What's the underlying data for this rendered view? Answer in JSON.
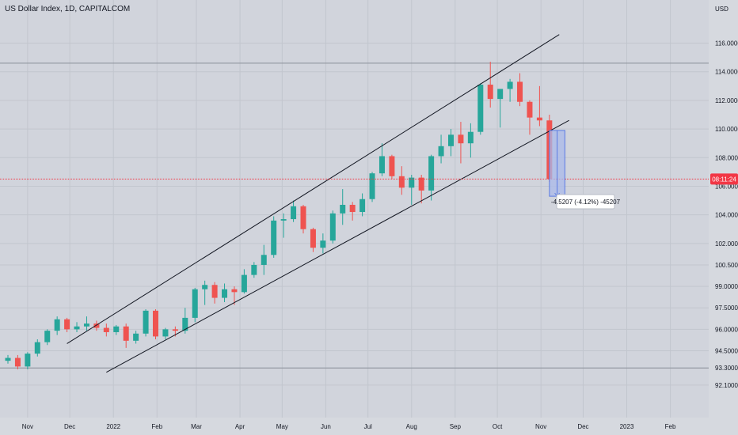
{
  "header": {
    "symbol_title": "US Dollar Index, 1D, CAPITALCOM",
    "currency": "USD"
  },
  "chart_data": {
    "type": "candlestick",
    "y_axis": {
      "ticks": [
        "116.0000",
        "114.0000",
        "112.0000",
        "110.0000",
        "108.0000",
        "106.0000",
        "104.0000",
        "102.0000",
        "100.5000",
        "99.0000",
        "97.5000",
        "96.0000",
        "94.5000",
        "93.3000",
        "92.1000"
      ],
      "visible_range": [
        91.1,
        117.8
      ]
    },
    "x_axis": {
      "ticks": [
        "Nov",
        "Dec",
        "2022",
        "Feb",
        "Mar",
        "Apr",
        "May",
        "Jun",
        "Jul",
        "Aug",
        "Sep",
        "Oct",
        "Nov",
        "Dec",
        "2023",
        "Feb"
      ],
      "range": [
        "2021-10-18",
        "2023-02-17"
      ]
    },
    "series": [
      {
        "type": "ohlc",
        "points": [
          [
            "2021-10-18",
            93.8,
            94.2,
            93.6,
            94.0
          ],
          [
            "2021-10-25",
            94.0,
            94.2,
            93.2,
            93.4
          ],
          [
            "2021-11-01",
            93.4,
            94.4,
            93.2,
            94.3
          ],
          [
            "2021-11-08",
            94.3,
            95.3,
            94.1,
            95.1
          ],
          [
            "2021-11-15",
            95.1,
            96.0,
            94.9,
            95.9
          ],
          [
            "2021-11-22",
            95.9,
            96.9,
            95.6,
            96.7
          ],
          [
            "2021-11-29",
            96.7,
            96.8,
            95.8,
            96.0
          ],
          [
            "2021-12-06",
            96.0,
            96.5,
            95.8,
            96.2
          ],
          [
            "2021-12-13",
            96.2,
            96.9,
            95.9,
            96.4
          ],
          [
            "2021-12-20",
            96.4,
            96.6,
            95.9,
            96.1
          ],
          [
            "2021-12-27",
            96.1,
            96.4,
            95.5,
            95.8
          ],
          [
            "2022-01-03",
            95.8,
            96.3,
            95.6,
            96.2
          ],
          [
            "2022-01-10",
            96.2,
            96.4,
            94.7,
            95.2
          ],
          [
            "2022-01-17",
            95.2,
            95.9,
            95.0,
            95.7
          ],
          [
            "2022-01-24",
            95.7,
            97.4,
            95.5,
            97.3
          ],
          [
            "2022-01-31",
            97.3,
            97.4,
            95.3,
            95.5
          ],
          [
            "2022-02-07",
            95.5,
            96.1,
            95.3,
            96.0
          ],
          [
            "2022-02-14",
            96.0,
            96.2,
            95.5,
            95.9
          ],
          [
            "2022-02-21",
            95.9,
            97.5,
            95.7,
            96.8
          ],
          [
            "2022-02-28",
            96.8,
            98.9,
            96.5,
            98.8
          ],
          [
            "2022-03-07",
            98.8,
            99.4,
            97.7,
            99.1
          ],
          [
            "2022-03-14",
            99.1,
            99.3,
            97.8,
            98.2
          ],
          [
            "2022-03-21",
            98.2,
            99.2,
            97.9,
            98.8
          ],
          [
            "2022-03-28",
            98.8,
            99.0,
            97.7,
            98.6
          ],
          [
            "2022-04-04",
            98.6,
            100.2,
            98.5,
            99.8
          ],
          [
            "2022-04-11",
            99.8,
            100.7,
            99.6,
            100.5
          ],
          [
            "2022-04-18",
            100.5,
            101.9,
            99.8,
            101.2
          ],
          [
            "2022-04-25",
            101.2,
            103.9,
            101.0,
            103.6
          ],
          [
            "2022-05-02",
            103.6,
            104.1,
            102.4,
            103.7
          ],
          [
            "2022-05-09",
            103.7,
            105.0,
            103.5,
            104.6
          ],
          [
            "2022-05-16",
            104.6,
            104.7,
            102.7,
            103.0
          ],
          [
            "2022-05-23",
            103.0,
            103.1,
            101.4,
            101.7
          ],
          [
            "2022-05-30",
            101.7,
            102.7,
            101.3,
            102.2
          ],
          [
            "2022-06-06",
            102.2,
            104.3,
            102.0,
            104.1
          ],
          [
            "2022-06-13",
            104.1,
            105.8,
            103.3,
            104.7
          ],
          [
            "2022-06-20",
            104.7,
            104.9,
            103.6,
            104.2
          ],
          [
            "2022-06-27",
            104.2,
            105.5,
            103.9,
            105.1
          ],
          [
            "2022-07-04",
            105.1,
            107.0,
            104.9,
            106.9
          ],
          [
            "2022-07-11",
            106.9,
            109.0,
            106.7,
            108.1
          ],
          [
            "2022-07-18",
            108.1,
            108.2,
            106.5,
            106.7
          ],
          [
            "2022-07-25",
            106.7,
            107.4,
            105.4,
            105.9
          ],
          [
            "2022-08-01",
            105.9,
            106.8,
            104.7,
            106.6
          ],
          [
            "2022-08-08",
            106.6,
            106.8,
            104.8,
            105.7
          ],
          [
            "2022-08-15",
            105.7,
            108.2,
            105.0,
            108.1
          ],
          [
            "2022-08-22",
            108.1,
            109.6,
            107.6,
            108.8
          ],
          [
            "2022-08-29",
            108.8,
            110.0,
            108.1,
            109.6
          ],
          [
            "2022-09-05",
            109.6,
            110.5,
            107.6,
            109.0
          ],
          [
            "2022-09-12",
            109.0,
            110.4,
            108.0,
            109.8
          ],
          [
            "2022-09-19",
            109.8,
            113.2,
            109.6,
            113.1
          ],
          [
            "2022-09-26",
            113.1,
            114.7,
            111.5,
            112.1
          ],
          [
            "2022-10-03",
            112.1,
            112.6,
            110.1,
            112.8
          ],
          [
            "2022-10-10",
            112.8,
            113.5,
            111.9,
            113.3
          ],
          [
            "2022-10-17",
            113.3,
            113.9,
            111.6,
            111.9
          ],
          [
            "2022-10-24",
            111.9,
            112.0,
            109.6,
            110.8
          ],
          [
            "2022-10-31",
            110.8,
            113.0,
            110.2,
            110.6
          ],
          [
            "2022-11-07",
            110.6,
            111.0,
            106.3,
            106.5
          ]
        ]
      }
    ],
    "annotations": {
      "channel_upper": [
        [
          "2021-11-29",
          95.0
        ],
        [
          "2022-11-14",
          116.6
        ]
      ],
      "channel_lower": [
        [
          "2021-12-27",
          93.0
        ],
        [
          "2022-11-21",
          110.6
        ]
      ],
      "horizontal_levels": [
        114.6,
        93.3
      ],
      "price_line": 106.5,
      "current_price_label": "08:11:24",
      "measure_box": {
        "from": [
          "2022-11-07",
          109.9
        ],
        "to": [
          "2022-11-18",
          105.3
        ]
      },
      "measure_label": "-4.5207 (-4.12%) -45207"
    },
    "colors": {
      "up": "#26a69a",
      "down": "#ef5350",
      "background": "#d1d4dc",
      "grid": "#c2c6ce",
      "channel": "#131722",
      "price_line": "#f23645",
      "measure_fill": "#a9b9ea",
      "measure_stroke": "#5b7be3"
    }
  }
}
